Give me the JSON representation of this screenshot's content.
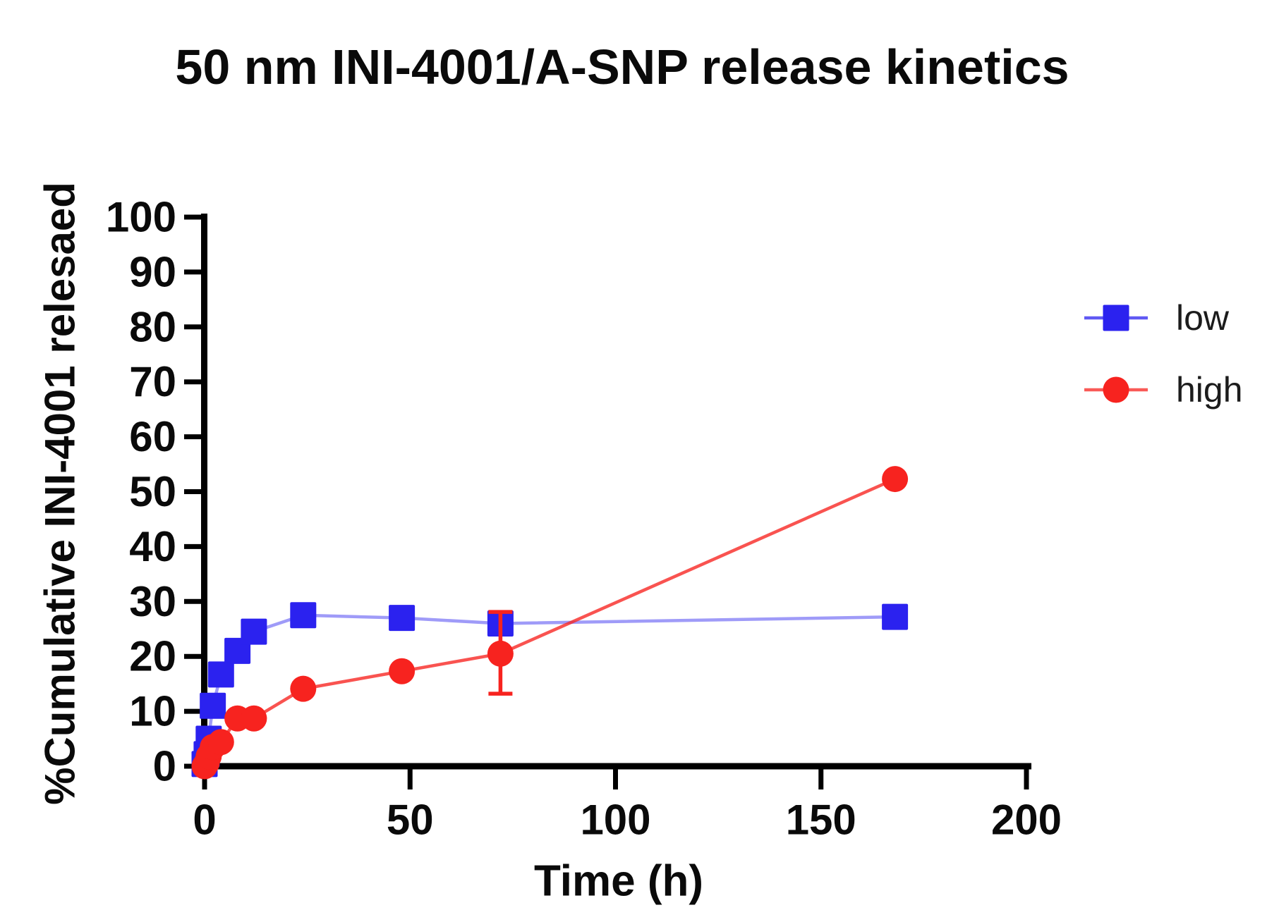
{
  "title": "50 nm INI-4001/A-SNP release kinetics",
  "legend": {
    "items": [
      {
        "label": "low",
        "marker": "square",
        "color": "#2b22ef"
      },
      {
        "label": "high",
        "marker": "circle",
        "color": "#f7231f"
      }
    ]
  },
  "chart_data": {
    "type": "line",
    "title": "50 nm INI-4001/A-SNP release kinetics",
    "xlabel": "Time (h)",
    "ylabel": "%Cumulative INI-4001 relesaed",
    "xlim": [
      0,
      200
    ],
    "ylim": [
      0,
      100
    ],
    "x_ticks": [
      0,
      50,
      100,
      150,
      200
    ],
    "y_ticks": [
      0,
      10,
      20,
      30,
      40,
      50,
      60,
      70,
      80,
      90,
      100
    ],
    "grid": false,
    "legend_position": "right",
    "axis_color": "#000000",
    "series": [
      {
        "name": "low",
        "marker": "square",
        "color": "#2b22ef",
        "line_opacity": 0.45,
        "x": [
          0,
          0.5,
          1,
          2,
          4,
          8,
          12,
          24,
          48,
          72,
          168
        ],
        "y": [
          0.4,
          2.2,
          5.0,
          11.0,
          16.7,
          21.0,
          24.5,
          27.5,
          27.0,
          26.0,
          27.2
        ]
      },
      {
        "name": "high",
        "marker": "circle",
        "color": "#f7231f",
        "line_opacity": 0.78,
        "x": [
          0,
          0.5,
          1,
          2,
          4,
          8,
          12,
          24,
          48,
          72,
          168
        ],
        "y": [
          0.0,
          0.6,
          1.8,
          3.5,
          4.4,
          8.7,
          8.7,
          14.1,
          17.3,
          20.5,
          52.3
        ],
        "error_bars": [
          {
            "x": 72,
            "y": 20.5,
            "plus": 7.6,
            "minus": 7.3
          }
        ]
      }
    ]
  }
}
